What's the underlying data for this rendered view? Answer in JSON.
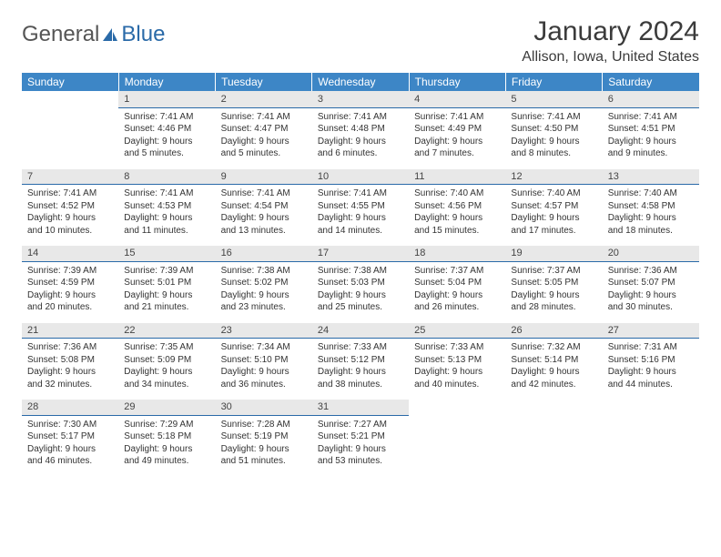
{
  "brand": {
    "text_a": "General",
    "text_b": "Blue",
    "logo_fill": "#2a6aa8"
  },
  "title": "January 2024",
  "location": "Allison, Iowa, United States",
  "colors": {
    "header_bg": "#3d86c6",
    "header_fg": "#ffffff",
    "numrow_bg": "#e8e8e8",
    "numrow_border": "#2a6aa8",
    "body_fg": "#333333",
    "page_bg": "#ffffff"
  },
  "day_names": [
    "Sunday",
    "Monday",
    "Tuesday",
    "Wednesday",
    "Thursday",
    "Friday",
    "Saturday"
  ],
  "first_weekday": 1,
  "days_in_month": 31,
  "cells": {
    "1": {
      "sunrise": "7:41 AM",
      "sunset": "4:46 PM",
      "daylight": "9 hours and 5 minutes."
    },
    "2": {
      "sunrise": "7:41 AM",
      "sunset": "4:47 PM",
      "daylight": "9 hours and 5 minutes."
    },
    "3": {
      "sunrise": "7:41 AM",
      "sunset": "4:48 PM",
      "daylight": "9 hours and 6 minutes."
    },
    "4": {
      "sunrise": "7:41 AM",
      "sunset": "4:49 PM",
      "daylight": "9 hours and 7 minutes."
    },
    "5": {
      "sunrise": "7:41 AM",
      "sunset": "4:50 PM",
      "daylight": "9 hours and 8 minutes."
    },
    "6": {
      "sunrise": "7:41 AM",
      "sunset": "4:51 PM",
      "daylight": "9 hours and 9 minutes."
    },
    "7": {
      "sunrise": "7:41 AM",
      "sunset": "4:52 PM",
      "daylight": "9 hours and 10 minutes."
    },
    "8": {
      "sunrise": "7:41 AM",
      "sunset": "4:53 PM",
      "daylight": "9 hours and 11 minutes."
    },
    "9": {
      "sunrise": "7:41 AM",
      "sunset": "4:54 PM",
      "daylight": "9 hours and 13 minutes."
    },
    "10": {
      "sunrise": "7:41 AM",
      "sunset": "4:55 PM",
      "daylight": "9 hours and 14 minutes."
    },
    "11": {
      "sunrise": "7:40 AM",
      "sunset": "4:56 PM",
      "daylight": "9 hours and 15 minutes."
    },
    "12": {
      "sunrise": "7:40 AM",
      "sunset": "4:57 PM",
      "daylight": "9 hours and 17 minutes."
    },
    "13": {
      "sunrise": "7:40 AM",
      "sunset": "4:58 PM",
      "daylight": "9 hours and 18 minutes."
    },
    "14": {
      "sunrise": "7:39 AM",
      "sunset": "4:59 PM",
      "daylight": "9 hours and 20 minutes."
    },
    "15": {
      "sunrise": "7:39 AM",
      "sunset": "5:01 PM",
      "daylight": "9 hours and 21 minutes."
    },
    "16": {
      "sunrise": "7:38 AM",
      "sunset": "5:02 PM",
      "daylight": "9 hours and 23 minutes."
    },
    "17": {
      "sunrise": "7:38 AM",
      "sunset": "5:03 PM",
      "daylight": "9 hours and 25 minutes."
    },
    "18": {
      "sunrise": "7:37 AM",
      "sunset": "5:04 PM",
      "daylight": "9 hours and 26 minutes."
    },
    "19": {
      "sunrise": "7:37 AM",
      "sunset": "5:05 PM",
      "daylight": "9 hours and 28 minutes."
    },
    "20": {
      "sunrise": "7:36 AM",
      "sunset": "5:07 PM",
      "daylight": "9 hours and 30 minutes."
    },
    "21": {
      "sunrise": "7:36 AM",
      "sunset": "5:08 PM",
      "daylight": "9 hours and 32 minutes."
    },
    "22": {
      "sunrise": "7:35 AM",
      "sunset": "5:09 PM",
      "daylight": "9 hours and 34 minutes."
    },
    "23": {
      "sunrise": "7:34 AM",
      "sunset": "5:10 PM",
      "daylight": "9 hours and 36 minutes."
    },
    "24": {
      "sunrise": "7:33 AM",
      "sunset": "5:12 PM",
      "daylight": "9 hours and 38 minutes."
    },
    "25": {
      "sunrise": "7:33 AM",
      "sunset": "5:13 PM",
      "daylight": "9 hours and 40 minutes."
    },
    "26": {
      "sunrise": "7:32 AM",
      "sunset": "5:14 PM",
      "daylight": "9 hours and 42 minutes."
    },
    "27": {
      "sunrise": "7:31 AM",
      "sunset": "5:16 PM",
      "daylight": "9 hours and 44 minutes."
    },
    "28": {
      "sunrise": "7:30 AM",
      "sunset": "5:17 PM",
      "daylight": "9 hours and 46 minutes."
    },
    "29": {
      "sunrise": "7:29 AM",
      "sunset": "5:18 PM",
      "daylight": "9 hours and 49 minutes."
    },
    "30": {
      "sunrise": "7:28 AM",
      "sunset": "5:19 PM",
      "daylight": "9 hours and 51 minutes."
    },
    "31": {
      "sunrise": "7:27 AM",
      "sunset": "5:21 PM",
      "daylight": "9 hours and 53 minutes."
    }
  },
  "labels": {
    "sunrise": "Sunrise:",
    "sunset": "Sunset:",
    "daylight": "Daylight:"
  }
}
